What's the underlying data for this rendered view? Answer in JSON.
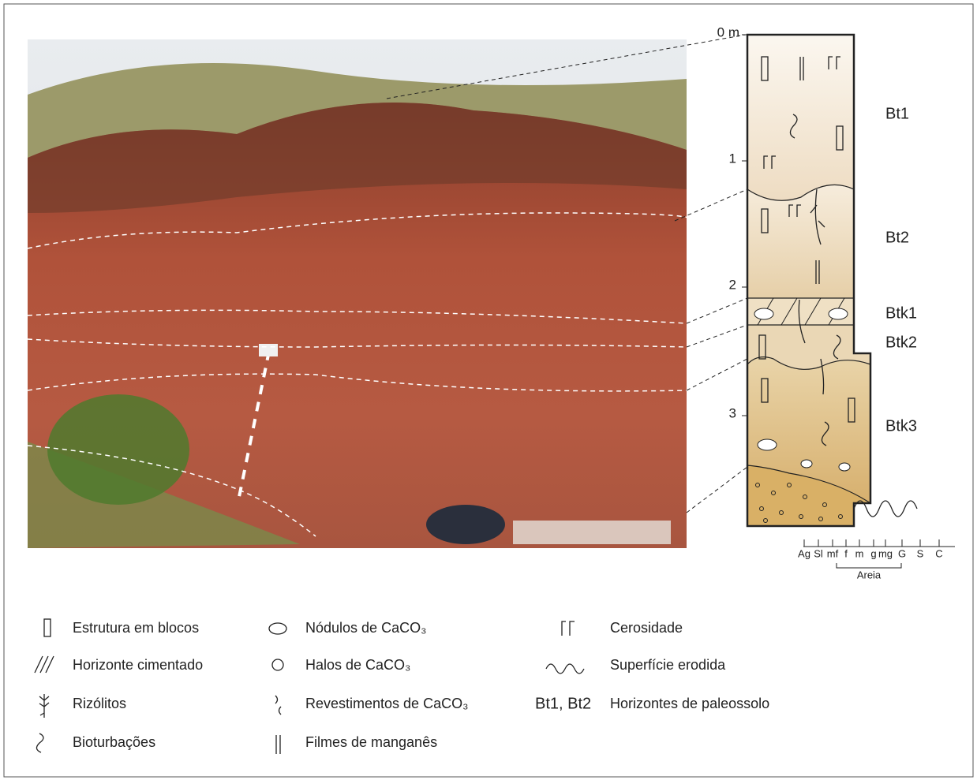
{
  "column": {
    "depths": [
      "0 m",
      "1",
      "2",
      "3"
    ],
    "horizons": [
      "Bt1",
      "Bt2",
      "Btk1",
      "Btk2",
      "Btk3"
    ],
    "grain_scale": [
      "Ag",
      "Sl",
      "mf",
      "f",
      "m",
      "g",
      "mg",
      "G",
      "S",
      "C"
    ],
    "grain_group": "Areia"
  },
  "legend": [
    [
      "Estrutura em blocos",
      "Nódulos de CaCO₃",
      "Cerosidade"
    ],
    [
      "Horizonte cimentado",
      "Halos de CaCO₃",
      "Superfície erodida"
    ],
    [
      "Rizólitos",
      "Revestimentos de CaCO₃",
      "Horizontes de paleossolo"
    ],
    [
      "Bioturbações",
      "Filmes de manganês"
    ]
  ],
  "legend_symbol": "Bt1, Bt2"
}
